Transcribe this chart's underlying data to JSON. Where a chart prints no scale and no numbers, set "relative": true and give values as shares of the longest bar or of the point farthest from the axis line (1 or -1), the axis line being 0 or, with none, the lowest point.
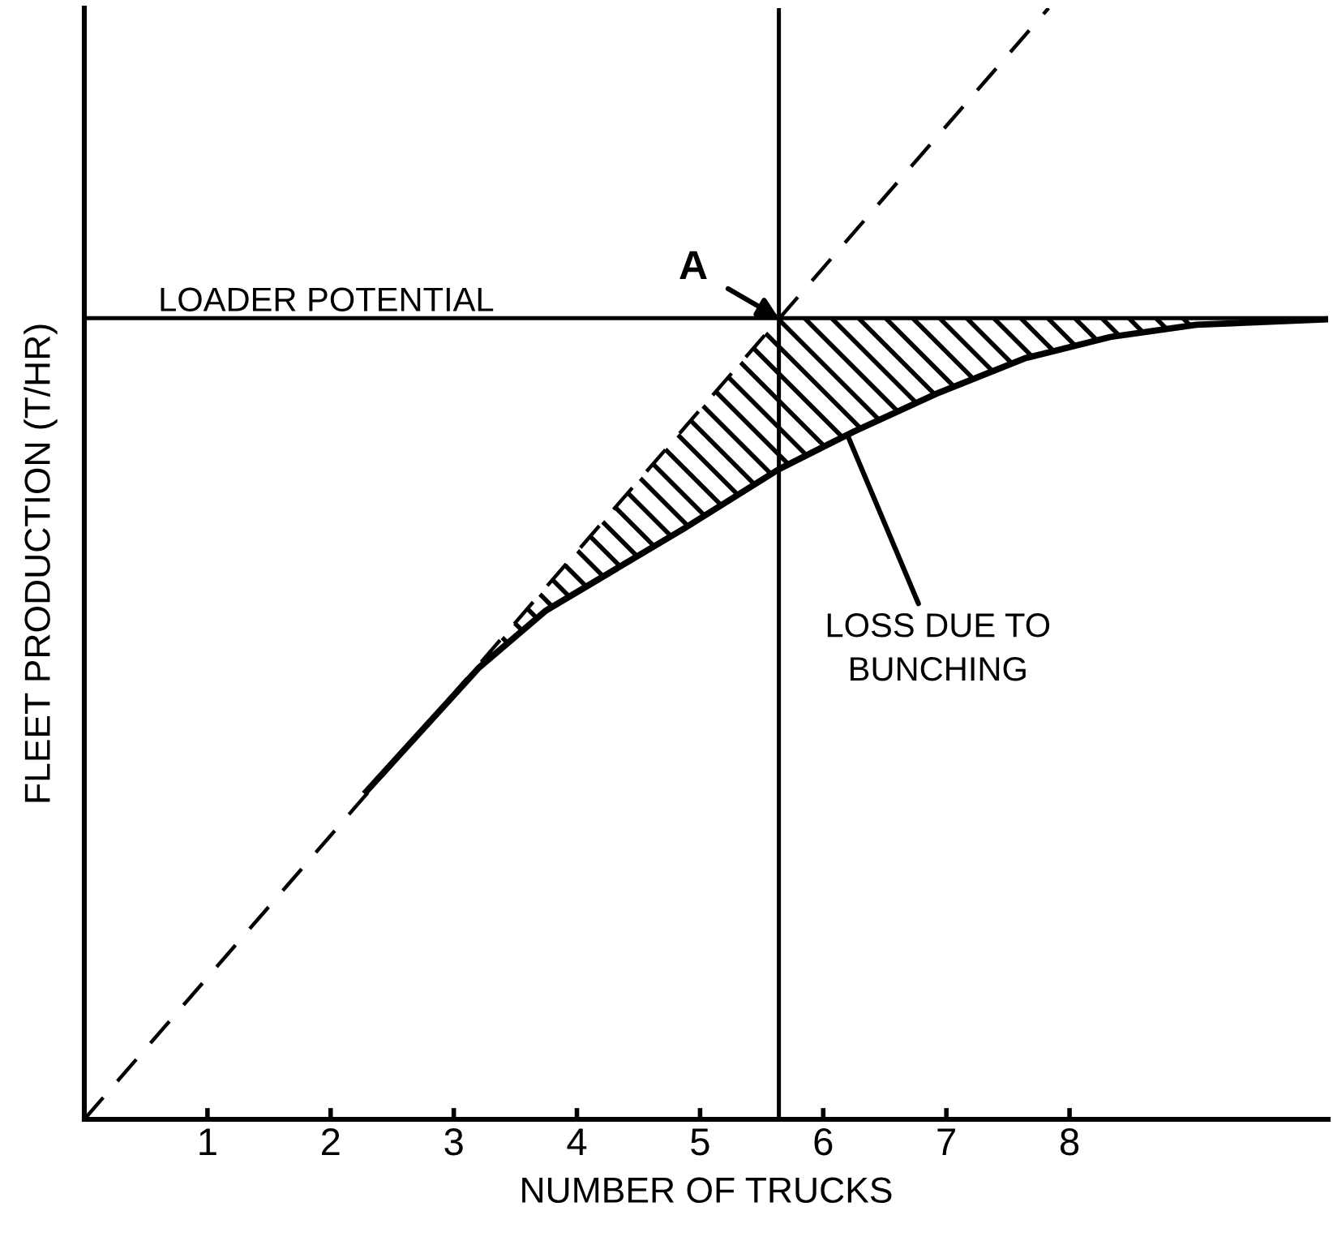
{
  "chart_data": {
    "type": "line",
    "relative": true,
    "xlabel": "NUMBER OF TRUCKS",
    "ylabel": "FLEET PRODUCTION (T/HR)",
    "xlim": [
      0,
      10.1
    ],
    "xticks": [
      1,
      2,
      3,
      4,
      5,
      6,
      7,
      8
    ],
    "grid": false,
    "legend": false,
    "marker": "none",
    "series": [
      {
        "color": "#000000",
        "line_style": "dashed",
        "x": [
          0,
          7.83
        ],
        "values": [
          0,
          1
        ]
      },
      {
        "color": "#000000",
        "line_style": "solid",
        "x": [
          2.29,
          3.2,
          3.75,
          4.86,
          5.64,
          6.25,
          6.94,
          7.64,
          8.33,
          9.03,
          10.1
        ],
        "values": [
          0.295,
          0.406,
          0.458,
          0.531,
          0.585,
          0.619,
          0.654,
          0.685,
          0.704,
          0.715,
          0.72
        ],
        "lower": [
          null,
          0.406,
          0.458,
          0.531,
          0.585,
          0.619,
          0.654,
          0.685,
          0.704,
          0.715,
          null
        ],
        "upper": [
          null,
          0.409,
          0.479,
          0.621,
          0.721,
          0.721,
          0.721,
          0.721,
          0.721,
          0.721,
          null
        ]
      }
    ],
    "ref_lines": [
      {
        "axis": "y",
        "value": 0.721,
        "label": "LOADER POTENTIAL",
        "color": "#000000"
      },
      {
        "axis": "x",
        "value": 5.64,
        "label": null,
        "color": "#000000"
      }
    ],
    "annotations": [
      {
        "text": "A",
        "x": 5.64,
        "y": 0.721
      },
      {
        "text": "LOSS DUE TO\nBUNCHING",
        "x": 6.2,
        "y": 0.615
      }
    ]
  }
}
